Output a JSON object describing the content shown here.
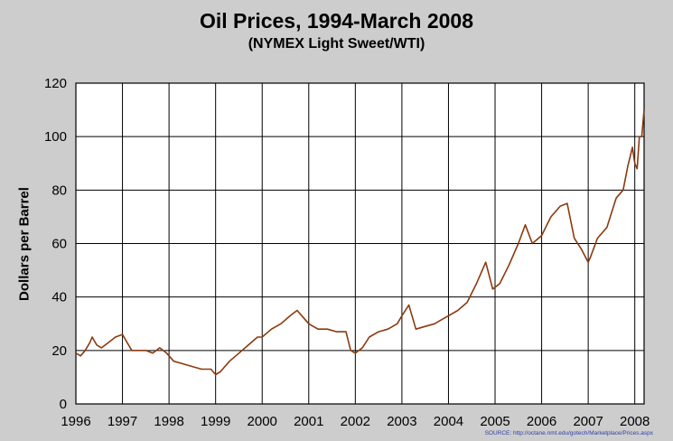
{
  "chart_data": {
    "type": "line",
    "title": "Oil Prices, 1994-March 2008",
    "subtitle": "(NYMEX Light Sweet/WTI)",
    "xlabel": "",
    "ylabel": "Dollars per Barrel",
    "source": "SOURCE: http://octane.nmt.edu/gotech/Marketplace/Prices.aspx",
    "xlim": [
      1996,
      2008.2
    ],
    "ylim": [
      0,
      120
    ],
    "x_ticks": [
      "1996",
      "1997",
      "1998",
      "1999",
      "2000",
      "2001",
      "2002",
      "2003",
      "2004",
      "2005",
      "2006",
      "2007",
      "2008"
    ],
    "y_ticks": [
      "0",
      "20",
      "40",
      "60",
      "80",
      "100",
      "120"
    ],
    "grid": true,
    "line_color": "#8b3a0e",
    "series": [
      {
        "x": [
          1996.0,
          1996.1,
          1996.2,
          1996.3,
          1996.35,
          1996.45,
          1996.55,
          1996.7,
          1996.85,
          1997.0,
          1997.1,
          1997.2,
          1997.35,
          1997.5,
          1997.65,
          1997.8,
          1997.95,
          1998.1,
          1998.3,
          1998.5,
          1998.7,
          1998.9,
          1999.0,
          1999.1,
          1999.3,
          1999.5,
          1999.7,
          1999.9,
          2000.0,
          2000.2,
          2000.4,
          2000.6,
          2000.75,
          2000.9,
          2001.0,
          2001.2,
          2001.4,
          2001.6,
          2001.8,
          2001.9,
          2002.0,
          2002.15,
          2002.3,
          2002.5,
          2002.7,
          2002.9,
          2003.0,
          2003.15,
          2003.3,
          2003.5,
          2003.7,
          2003.9,
          2004.0,
          2004.2,
          2004.4,
          2004.6,
          2004.8,
          2004.95,
          2005.1,
          2005.3,
          2005.5,
          2005.65,
          2005.8,
          2006.0,
          2006.2,
          2006.4,
          2006.55,
          2006.7,
          2006.85,
          2007.0,
          2007.05,
          2007.2,
          2007.4,
          2007.6,
          2007.75,
          2007.85,
          2007.95,
          2008.0,
          2008.05,
          2008.1,
          2008.15,
          2008.2
        ],
        "y": [
          19,
          18,
          20,
          23,
          25,
          22,
          21,
          23,
          25,
          26,
          23,
          20,
          20,
          20,
          19,
          21,
          19,
          16,
          15,
          14,
          13,
          13,
          11,
          12,
          16,
          19,
          22,
          25,
          25,
          28,
          30,
          33,
          35,
          32,
          30,
          28,
          28,
          27,
          27,
          20,
          19,
          21,
          25,
          27,
          28,
          30,
          33,
          37,
          28,
          29,
          30,
          32,
          33,
          35,
          38,
          45,
          53,
          43,
          45,
          52,
          60,
          67,
          60,
          63,
          70,
          74,
          75,
          62,
          58,
          53,
          55,
          62,
          66,
          77,
          80,
          89,
          96,
          90,
          88,
          100,
          100,
          110
        ]
      }
    ]
  }
}
